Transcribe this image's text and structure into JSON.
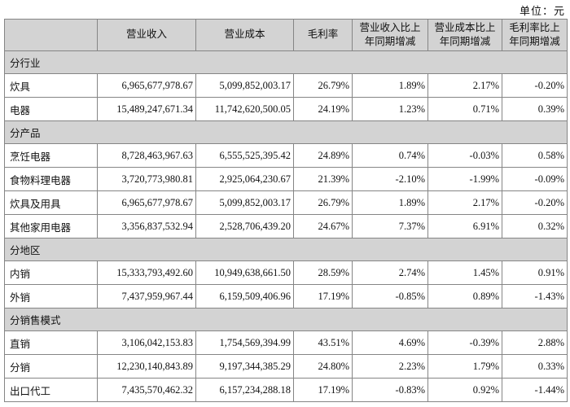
{
  "unit_label": "单位：元",
  "colors": {
    "section_bg": "#d3d3d3",
    "border": "#858585",
    "text": "#111111"
  },
  "table": {
    "columns": [
      "",
      "营业收入",
      "营业成本",
      "毛利率",
      "营业收入比上年同期增减",
      "营业成本比上年同期增减",
      "毛利率比上年同期增减"
    ],
    "rows": [
      {
        "type": "section",
        "label": "分行业"
      },
      {
        "type": "data",
        "label": "炊具",
        "revenue": "6,965,677,978.67",
        "cost": "5,099,852,003.17",
        "margin": "26.79%",
        "revenue_yoy": "1.89%",
        "cost_yoy": "2.17%",
        "margin_yoy": "-0.20%"
      },
      {
        "type": "data",
        "label": "电器",
        "revenue": "15,489,247,671.34",
        "cost": "11,742,620,500.05",
        "margin": "24.19%",
        "revenue_yoy": "1.23%",
        "cost_yoy": "0.71%",
        "margin_yoy": "0.39%"
      },
      {
        "type": "section",
        "label": "分产品"
      },
      {
        "type": "data",
        "label": "烹饪电器",
        "revenue": "8,728,463,967.63",
        "cost": "6,555,525,395.42",
        "margin": "24.89%",
        "revenue_yoy": "0.74%",
        "cost_yoy": "-0.03%",
        "margin_yoy": "0.58%"
      },
      {
        "type": "data",
        "label": "食物料理电器",
        "revenue": "3,720,773,980.81",
        "cost": "2,925,064,230.67",
        "margin": "21.39%",
        "revenue_yoy": "-2.10%",
        "cost_yoy": "-1.99%",
        "margin_yoy": "-0.09%"
      },
      {
        "type": "data",
        "label": "炊具及用具",
        "revenue": "6,965,677,978.67",
        "cost": "5,099,852,003.17",
        "margin": "26.79%",
        "revenue_yoy": "1.89%",
        "cost_yoy": "2.17%",
        "margin_yoy": "-0.20%"
      },
      {
        "type": "data",
        "label": "其他家用电器",
        "revenue": "3,356,837,532.94",
        "cost": "2,528,706,439.20",
        "margin": "24.67%",
        "revenue_yoy": "7.37%",
        "cost_yoy": "6.91%",
        "margin_yoy": "0.32%"
      },
      {
        "type": "section",
        "label": "分地区"
      },
      {
        "type": "data",
        "label": "内销",
        "revenue": "15,333,793,492.60",
        "cost": "10,949,638,661.50",
        "margin": "28.59%",
        "revenue_yoy": "2.74%",
        "cost_yoy": "1.45%",
        "margin_yoy": "0.91%"
      },
      {
        "type": "data",
        "label": "外销",
        "revenue": "7,437,959,967.44",
        "cost": "6,159,509,406.96",
        "margin": "17.19%",
        "revenue_yoy": "-0.85%",
        "cost_yoy": "0.89%",
        "margin_yoy": "-1.43%"
      },
      {
        "type": "section",
        "label": "分销售模式"
      },
      {
        "type": "data",
        "label": "直销",
        "revenue": "3,106,042,153.83",
        "cost": "1,754,569,394.99",
        "margin": "43.51%",
        "revenue_yoy": "4.69%",
        "cost_yoy": "-0.39%",
        "margin_yoy": "2.88%"
      },
      {
        "type": "data",
        "label": "分销",
        "revenue": "12,230,140,843.89",
        "cost": "9,197,344,385.29",
        "margin": "24.80%",
        "revenue_yoy": "2.23%",
        "cost_yoy": "1.79%",
        "margin_yoy": "0.33%"
      },
      {
        "type": "data",
        "label": "出口代工",
        "revenue": "7,435,570,462.32",
        "cost": "6,157,234,288.18",
        "margin": "17.19%",
        "revenue_yoy": "-0.83%",
        "cost_yoy": "0.92%",
        "margin_yoy": "-1.44%"
      }
    ]
  }
}
